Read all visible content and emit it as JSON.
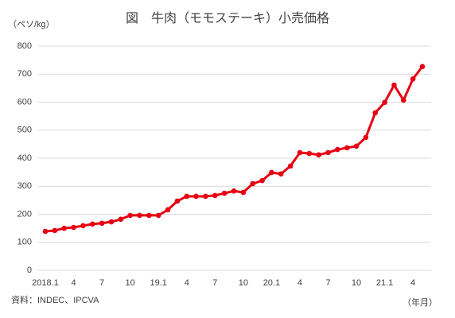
{
  "chart_data": {
    "type": "line",
    "title": "図　牛肉（モモステーキ）小売価格",
    "y_label": "（ペソ/kg）",
    "x_label": "（年月）",
    "source": "資料：INDEC、IPCVA",
    "categories": [
      "2018.1",
      null,
      null,
      "4",
      null,
      null,
      "7",
      null,
      null,
      "10",
      null,
      null,
      "19.1",
      null,
      null,
      "4",
      null,
      null,
      "7",
      null,
      null,
      "10",
      null,
      null,
      "20.1",
      null,
      null,
      "4",
      null,
      null,
      "7",
      null,
      null,
      "10",
      null,
      null,
      "21.1",
      null,
      null,
      "4",
      null
    ],
    "series": [
      {
        "name": "牛肉（モモステーキ）",
        "color": "#e60012",
        "values": [
          139,
          142,
          150,
          153,
          159,
          165,
          168,
          173,
          182,
          196,
          196,
          196,
          196,
          216,
          247,
          264,
          264,
          264,
          267,
          275,
          283,
          278,
          309,
          320,
          349,
          344,
          372,
          420,
          417,
          412,
          420,
          431,
          437,
          443,
          474,
          562,
          599,
          661,
          607,
          683,
          727
        ]
      }
    ],
    "ylim": [
      0,
      800
    ],
    "yticks": [
      0,
      100,
      200,
      300,
      400,
      500,
      600,
      700,
      800
    ],
    "grid": true
  }
}
